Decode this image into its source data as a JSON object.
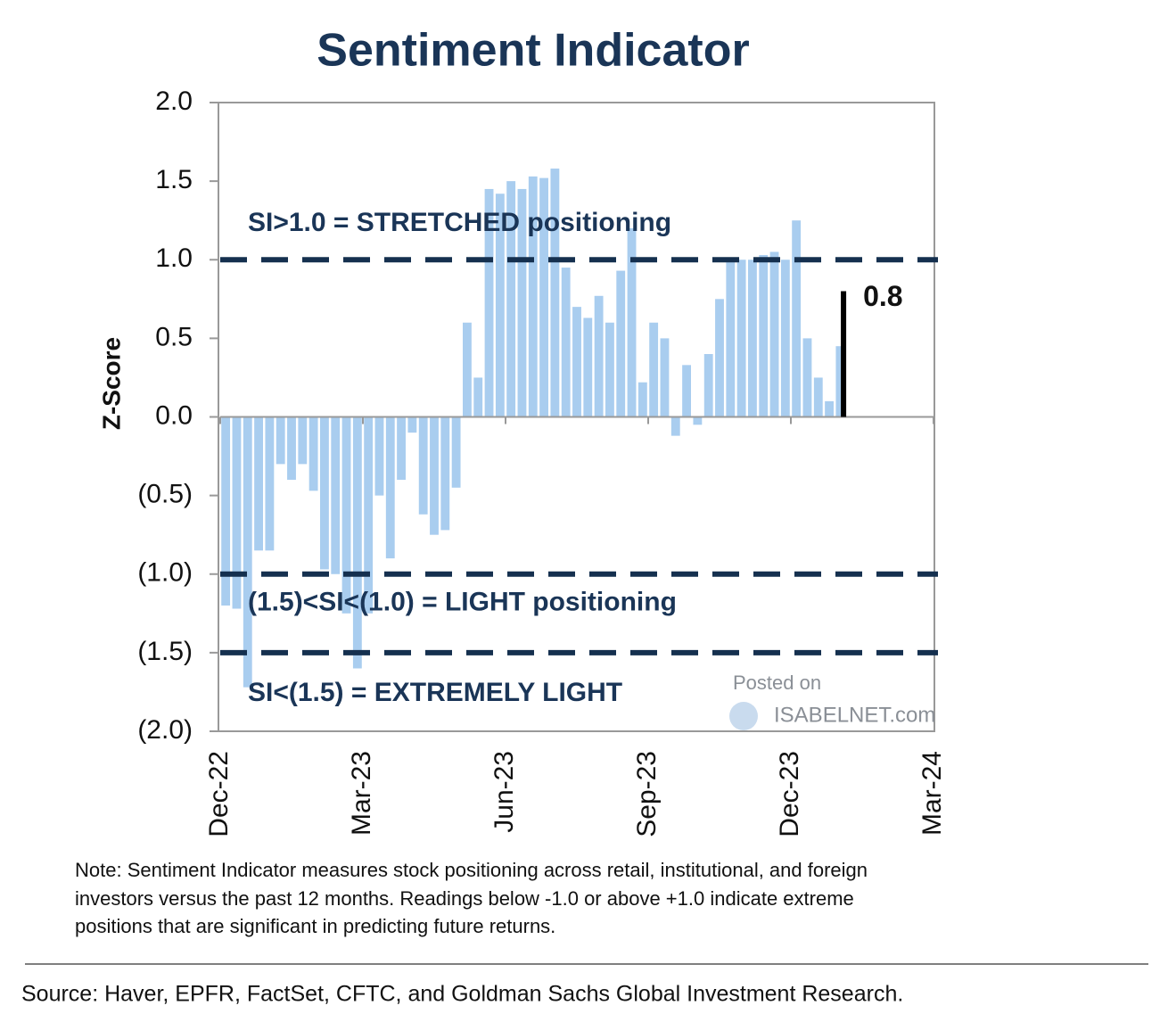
{
  "chart_data": {
    "type": "bar",
    "title": "Sentiment Indicator",
    "ylabel": "Z-Score",
    "color": "#a9cdef",
    "values": [
      -1.2,
      -1.22,
      -1.72,
      -0.85,
      -0.85,
      -0.3,
      -0.4,
      -0.3,
      -0.47,
      -0.97,
      -1.0,
      -1.25,
      -1.6,
      -1.25,
      -0.5,
      -0.9,
      -0.4,
      -0.1,
      -0.62,
      -0.75,
      -0.72,
      -0.45,
      0.6,
      0.25,
      1.45,
      1.42,
      1.5,
      1.45,
      1.53,
      1.52,
      1.58,
      0.95,
      0.7,
      0.63,
      0.77,
      0.6,
      0.93,
      1.2,
      0.22,
      0.6,
      0.5,
      -0.12,
      0.33,
      -0.05,
      0.4,
      0.75,
      1.0,
      1.0,
      1.0,
      1.03,
      1.05,
      1.0,
      1.25,
      0.5,
      0.25,
      0.1,
      0.45
    ],
    "xlim": [
      0,
      65
    ],
    "xticks": [
      {
        "value": 0,
        "label": "Dec-22"
      },
      {
        "value": 13,
        "label": "Mar-23"
      },
      {
        "value": 26,
        "label": "Jun-23"
      },
      {
        "value": 39,
        "label": "Sep-23"
      },
      {
        "value": 52,
        "label": "Dec-23"
      },
      {
        "value": 65,
        "label": "Mar-24"
      }
    ],
    "ylim": [
      -2,
      2
    ],
    "yticks": [
      {
        "value": 2,
        "label": "2.0"
      },
      {
        "value": 1.5,
        "label": "1.5"
      },
      {
        "value": 1,
        "label": "1.0"
      },
      {
        "value": 0.5,
        "label": "0.5"
      },
      {
        "value": 0,
        "label": "0.0"
      },
      {
        "value": -0.5,
        "label": "(0.5)"
      },
      {
        "value": -1,
        "label": "(1.0)"
      },
      {
        "value": -1.5,
        "label": "(1.5)"
      },
      {
        "value": -2,
        "label": "(2.0)"
      }
    ],
    "reference_lines": [
      {
        "value": 1,
        "label": "SI>1.0 = STRETCHED positioning",
        "color": "#15304f"
      },
      {
        "value": -1,
        "label": "(1.5)<SI<(1.0) = LIGHT positioning",
        "color": "#15304f"
      },
      {
        "value": -1.5,
        "label": "SI<(1.5) = EXTREMELY LIGHT",
        "color": "#15304f"
      }
    ],
    "annotation": {
      "text": "0.8",
      "value": 0.8,
      "color": "#000000"
    },
    "note": [
      "Note: Sentiment Indicator measures stock positioning across retail, institutional, and foreign",
      "investors versus the past 12 months. Readings below -1.0 or above +1.0 indicate extreme",
      "positions that are significant in predicting future returns."
    ],
    "source": "Source: Haver, EPFR, FactSet, CFTC, and Goldman Sachs Global Investment Research.",
    "watermark": [
      "Posted on",
      "ISABELNET.com"
    ]
  }
}
